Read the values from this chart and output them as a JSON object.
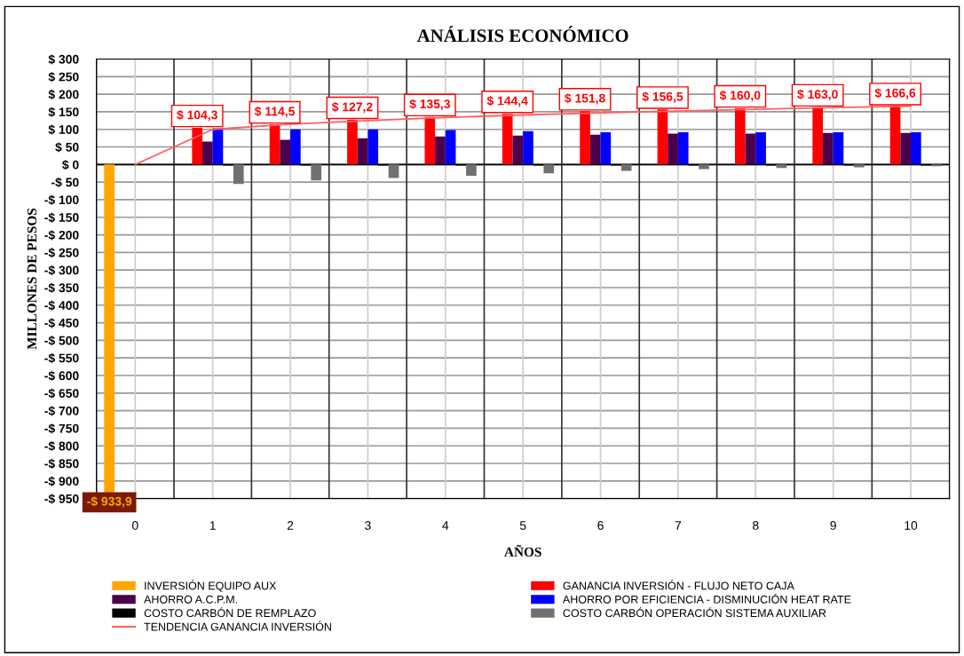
{
  "chart_data": {
    "type": "bar",
    "title": "ANÁLISIS ECONÓMICO",
    "xlabel": "AÑOS",
    "ylabel": "MILLONES DE PESOS",
    "categories": [
      "0",
      "1",
      "2",
      "3",
      "4",
      "5",
      "6",
      "7",
      "8",
      "9",
      "10"
    ],
    "series": [
      {
        "name": "INVERSIÓN EQUIPO AUX",
        "color": "#ffa500",
        "values": [
          -933.9,
          null,
          null,
          null,
          null,
          null,
          null,
          null,
          null,
          null,
          null
        ],
        "value_labels": [
          "-$ 933,9",
          null,
          null,
          null,
          null,
          null,
          null,
          null,
          null,
          null,
          null
        ]
      },
      {
        "name": "GANANCIA INVERSIÓN - FLUJO NETO CAJA",
        "color": "#ff0000",
        "values": [
          null,
          104.3,
          114.5,
          127.2,
          135.3,
          144.4,
          151.8,
          156.5,
          160.0,
          163.0,
          166.6
        ],
        "value_labels": [
          null,
          "$ 104,3",
          "$ 114,5",
          "$ 127,2",
          "$ 135,3",
          "$ 144,4",
          "$ 151,8",
          "$ 156,5",
          "$ 160,0",
          "$ 163,0",
          "$ 166,6"
        ]
      },
      {
        "name": "AHORRO A.C.P.M.",
        "color": "#4b004b",
        "values": [
          null,
          65,
          70,
          75,
          80,
          82,
          85,
          88,
          88,
          90,
          90
        ]
      },
      {
        "name": "AHORRO POR EFICIENCIA - DISMINUCIÓN HEAT RATE",
        "color": "#0000ff",
        "values": [
          null,
          103,
          100,
          100,
          98,
          95,
          92,
          92,
          92,
          92,
          92
        ]
      },
      {
        "name": "COSTO CARBÓN DE REMPLAZO",
        "color": "#000000",
        "values": [
          null,
          -3,
          -3,
          -3,
          -3,
          -3,
          -3,
          -3,
          -3,
          -3,
          -3
        ]
      },
      {
        "name": "COSTO CARBÓN OPERACIÓN SISTEMA AUXILIAR",
        "color": "#707070",
        "values": [
          null,
          -55,
          -45,
          -38,
          -32,
          -25,
          -18,
          -13,
          -10,
          -8,
          -5
        ]
      },
      {
        "name": "TENDENCIA GANANCIA INVERSIÓN",
        "type": "line",
        "color": "#ff6060",
        "values": [
          0,
          100,
          115,
          125,
          134,
          141,
          147,
          152,
          157,
          162,
          166
        ]
      }
    ],
    "ylim": [
      -950,
      300
    ],
    "yticks": [
      {
        "value": 300,
        "label": "$ 300"
      },
      {
        "value": 250,
        "label": "$ 250"
      },
      {
        "value": 200,
        "label": "$ 200"
      },
      {
        "value": 150,
        "label": "$ 150"
      },
      {
        "value": 100,
        "label": "$ 100"
      },
      {
        "value": 50,
        "label": "$ 50"
      },
      {
        "value": 0,
        "label": "$ 0"
      },
      {
        "value": -50,
        "label": "-$ 50"
      },
      {
        "value": -100,
        "label": "-$ 100"
      },
      {
        "value": -150,
        "label": "-$ 150"
      },
      {
        "value": -200,
        "label": "-$ 200"
      },
      {
        "value": -250,
        "label": "-$ 250"
      },
      {
        "value": -300,
        "label": "-$ 300"
      },
      {
        "value": -350,
        "label": "-$ 350"
      },
      {
        "value": -400,
        "label": "-$ 400"
      },
      {
        "value": -450,
        "label": "-$ 450"
      },
      {
        "value": -500,
        "label": "-$ 500"
      },
      {
        "value": -550,
        "label": "-$ 550"
      },
      {
        "value": -600,
        "label": "-$ 600"
      },
      {
        "value": -650,
        "label": "-$ 650"
      },
      {
        "value": -700,
        "label": "-$ 700"
      },
      {
        "value": -750,
        "label": "-$ 750"
      },
      {
        "value": -800,
        "label": "-$ 800"
      },
      {
        "value": -850,
        "label": "-$ 850"
      },
      {
        "value": -900,
        "label": "-$ 900"
      },
      {
        "value": -950,
        "label": "-$ 950"
      }
    ],
    "grid": true,
    "legend": "bottom"
  }
}
